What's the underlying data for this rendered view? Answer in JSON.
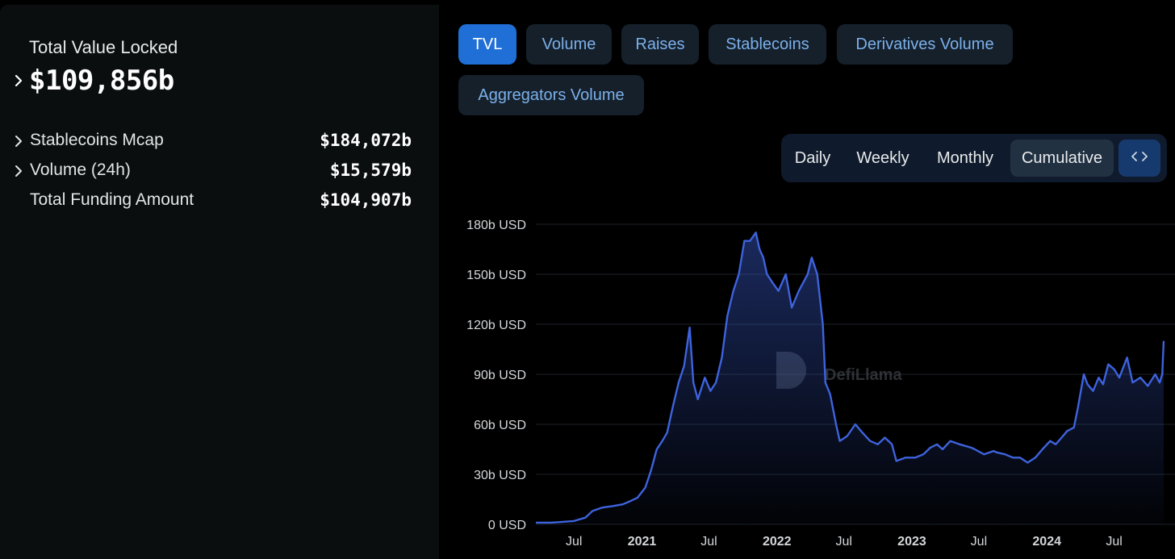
{
  "overview": {
    "tvl_label": "Total Value Locked",
    "tvl_value": "$109,856b",
    "stats": [
      {
        "label": "Stablecoins Mcap",
        "value": "$184,072b"
      },
      {
        "label": "Volume (24h)",
        "value": "$15,579b"
      },
      {
        "label": "Total Funding Amount",
        "value": "$104,907b"
      }
    ]
  },
  "tabs": [
    "TVL",
    "Volume",
    "Raises",
    "Stablecoins",
    "Derivatives Volume",
    "Aggregators Volume"
  ],
  "active_tab": "TVL",
  "periods": [
    "Daily",
    "Weekly",
    "Monthly",
    "Cumulative"
  ],
  "active_period": "Cumulative",
  "embed_icon": "code-icon",
  "watermark": "DefiLlama",
  "colors": {
    "accent": "#1f6fd6",
    "tab_text": "#7cb0ea",
    "line": "#3e63dd",
    "panel": "#0a0e0f"
  },
  "chart_data": {
    "type": "area",
    "title": "",
    "xlabel": "",
    "ylabel": "",
    "ylim": [
      0,
      180
    ],
    "y_ticks": [
      "0 USD",
      "30b USD",
      "60b USD",
      "90b USD",
      "120b USD",
      "150b USD",
      "180b USD"
    ],
    "x_ticks": [
      {
        "date": "2020-07-01",
        "label": "Jul"
      },
      {
        "date": "2021-01-01",
        "label": "2021"
      },
      {
        "date": "2021-07-01",
        "label": "Jul"
      },
      {
        "date": "2022-01-01",
        "label": "2022"
      },
      {
        "date": "2022-07-01",
        "label": "Jul"
      },
      {
        "date": "2023-01-01",
        "label": "2023"
      },
      {
        "date": "2023-07-01",
        "label": "Jul"
      },
      {
        "date": "2024-01-01",
        "label": "2024"
      },
      {
        "date": "2024-07-01",
        "label": "Jul"
      }
    ],
    "series": [
      {
        "x": [
          "2020-03-20",
          "2020-05-01",
          "2020-06-01",
          "2020-07-01",
          "2020-08-01",
          "2020-08-20",
          "2020-09-15",
          "2020-10-15",
          "2020-11-10",
          "2020-12-01",
          "2020-12-20",
          "2021-01-10",
          "2021-01-25",
          "2021-02-10",
          "2021-02-25",
          "2021-03-10",
          "2021-03-25",
          "2021-04-10",
          "2021-04-25",
          "2021-05-10",
          "2021-05-20",
          "2021-06-01",
          "2021-06-20",
          "2021-07-05",
          "2021-07-20",
          "2021-08-05",
          "2021-08-20",
          "2021-09-05",
          "2021-09-20",
          "2021-10-05",
          "2021-10-20",
          "2021-11-05",
          "2021-11-15",
          "2021-11-25",
          "2021-12-05",
          "2021-12-20",
          "2022-01-05",
          "2022-01-25",
          "2022-02-10",
          "2022-03-01",
          "2022-03-25",
          "2022-04-05",
          "2022-04-20",
          "2022-05-05",
          "2022-05-12",
          "2022-05-25",
          "2022-06-10",
          "2022-06-20",
          "2022-07-10",
          "2022-08-01",
          "2022-08-20",
          "2022-09-10",
          "2022-10-01",
          "2022-10-20",
          "2022-11-08",
          "2022-11-20",
          "2022-12-15",
          "2023-01-10",
          "2023-02-01",
          "2023-02-20",
          "2023-03-10",
          "2023-03-25",
          "2023-04-15",
          "2023-05-10",
          "2023-06-10",
          "2023-06-20",
          "2023-07-15",
          "2023-08-10",
          "2023-08-20",
          "2023-09-10",
          "2023-10-01",
          "2023-10-20",
          "2023-11-10",
          "2023-12-01",
          "2023-12-20",
          "2024-01-10",
          "2024-01-25",
          "2024-02-10",
          "2024-02-25",
          "2024-03-14",
          "2024-03-25",
          "2024-04-10",
          "2024-04-20",
          "2024-05-05",
          "2024-05-20",
          "2024-06-01",
          "2024-06-15",
          "2024-07-01",
          "2024-07-15",
          "2024-08-05",
          "2024-08-20",
          "2024-09-10",
          "2024-09-30",
          "2024-10-20",
          "2024-11-01",
          "2024-11-08",
          "2024-11-12"
        ],
        "values": [
          1,
          1,
          1.5,
          2,
          4,
          8,
          10,
          11,
          12,
          14,
          16,
          22,
          32,
          45,
          50,
          55,
          70,
          85,
          95,
          118,
          85,
          75,
          88,
          80,
          85,
          100,
          125,
          140,
          150,
          170,
          170,
          175,
          165,
          160,
          150,
          145,
          140,
          150,
          130,
          140,
          150,
          160,
          150,
          120,
          85,
          78,
          60,
          50,
          53,
          60,
          55,
          50,
          48,
          52,
          48,
          38,
          40,
          40,
          42,
          46,
          48,
          45,
          50,
          48,
          46,
          45,
          42,
          44,
          43,
          42,
          40,
          40,
          37,
          40,
          45,
          50,
          48,
          52,
          56,
          58,
          70,
          90,
          84,
          80,
          88,
          84,
          96,
          93,
          88,
          100,
          85,
          88,
          83,
          90,
          85,
          90,
          110
        ]
      }
    ]
  }
}
